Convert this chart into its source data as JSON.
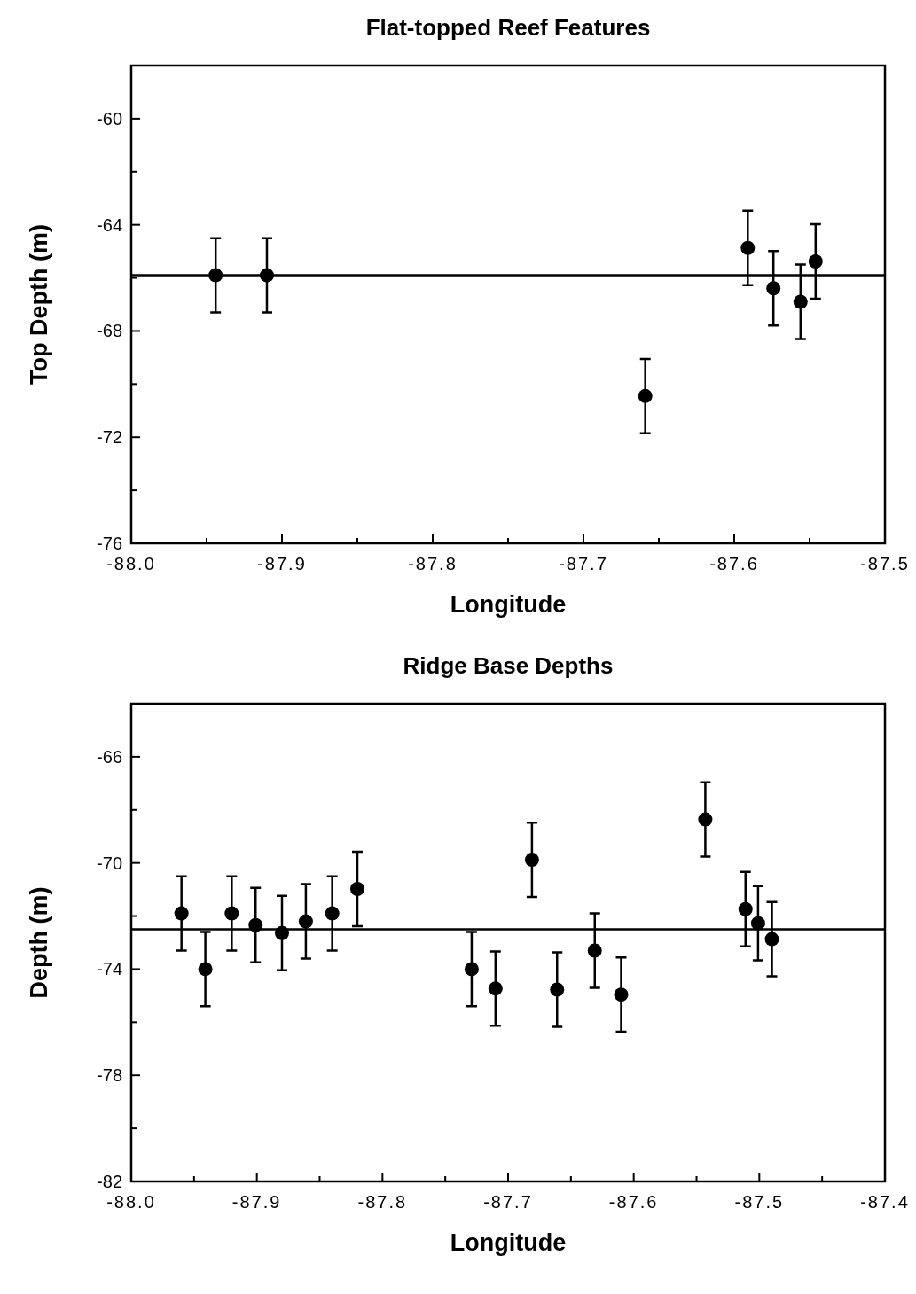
{
  "chart_data": [
    {
      "type": "scatter",
      "title": "Flat-topped Reef Features",
      "xlabel": "Longitude",
      "ylabel": "Top Depth (m)",
      "marker": "circle",
      "x": [
        -87.944,
        -87.91,
        -87.659,
        -87.591,
        -87.574,
        -87.556,
        -87.546
      ],
      "series": [
        {
          "color": "#000000",
          "values": [
            -65.9,
            -65.9,
            -70.45,
            -64.87,
            -66.39,
            -66.9,
            -65.38
          ],
          "errors": [
            1.4,
            1.4,
            1.4,
            1.4,
            1.4,
            1.4,
            1.4
          ]
        }
      ],
      "ref_lines": [
        {
          "axis": "y",
          "value": -65.9,
          "color": "#000000"
        }
      ],
      "xlim": [
        -88,
        -87.5
      ],
      "ylim": [
        -76,
        -58
      ],
      "xticks": [
        {
          "value": -88,
          "label": "-88.0"
        },
        {
          "value": -87.95,
          "label": null
        },
        -87.9,
        {
          "value": -87.85,
          "label": null
        },
        -87.8,
        {
          "value": -87.75,
          "label": null
        },
        -87.7,
        {
          "value": -87.65,
          "label": null
        },
        -87.6,
        {
          "value": -87.55,
          "label": null
        },
        {
          "value": -87.5,
          "label": "-87.5"
        }
      ],
      "yticks": [
        -76,
        {
          "value": -74,
          "label": null
        },
        -72,
        {
          "value": -70,
          "label": null
        },
        -68,
        {
          "value": -66,
          "label": null
        },
        -64,
        {
          "value": -62,
          "label": null
        },
        -60
      ]
    },
    {
      "type": "scatter",
      "title": "Ridge Base Depths",
      "xlabel": "Longitude",
      "ylabel": "Depth (m)",
      "marker": "circle",
      "x": [
        -87.96,
        -87.941,
        -87.92,
        -87.901,
        -87.88,
        -87.861,
        -87.84,
        -87.82,
        -87.729,
        -87.71,
        -87.681,
        -87.661,
        -87.631,
        -87.61,
        -87.543,
        -87.511,
        -87.501,
        -87.49
      ],
      "series": [
        {
          "color": "#000000",
          "values": [
            -71.9,
            -74.0,
            -71.9,
            -72.34,
            -72.64,
            -72.2,
            -71.9,
            -70.98,
            -74.0,
            -74.73,
            -69.88,
            -74.77,
            -73.3,
            -74.96,
            -68.36,
            -71.74,
            -72.27,
            -72.87
          ],
          "errors": [
            1.4,
            1.4,
            1.4,
            1.4,
            1.4,
            1.4,
            1.4,
            1.4,
            1.4,
            1.4,
            1.4,
            1.4,
            1.4,
            1.4,
            1.4,
            1.4,
            1.4,
            1.4
          ]
        }
      ],
      "ref_lines": [
        {
          "axis": "y",
          "value": -72.5,
          "color": "#000000"
        }
      ],
      "xlim": [
        -88,
        -87.4
      ],
      "ylim": [
        -82,
        -64
      ],
      "xticks": [
        {
          "value": -88,
          "label": "-88.0"
        },
        {
          "value": -87.95,
          "label": null
        },
        -87.9,
        {
          "value": -87.85,
          "label": null
        },
        -87.8,
        {
          "value": -87.75,
          "label": null
        },
        -87.7,
        {
          "value": -87.65,
          "label": null
        },
        -87.6,
        {
          "value": -87.55,
          "label": null
        },
        -87.5,
        {
          "value": -87.45,
          "label": null
        },
        -87.4
      ],
      "yticks": [
        -82,
        {
          "value": -80,
          "label": null
        },
        -78,
        {
          "value": -76,
          "label": null
        },
        -74,
        {
          "value": -72,
          "label": null
        },
        -70,
        {
          "value": -68,
          "label": null
        },
        -66
      ]
    }
  ]
}
